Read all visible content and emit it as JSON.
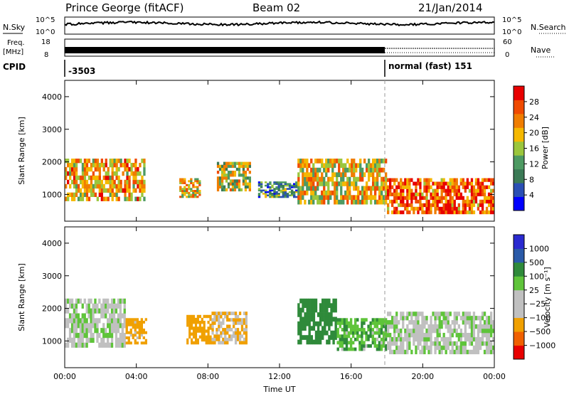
{
  "header": {
    "station": "Prince George (fitACF)",
    "beam": "Beam 02",
    "date": "21/Jan/2014"
  },
  "top_panels": {
    "nsky_label": "N.Sky",
    "nsearch_label": "N.Search",
    "noise_ticks": [
      "10^5",
      "10^0"
    ],
    "freq_label": "Freq.",
    "freq_unit": "[MHz]",
    "freq_ticks": [
      "18",
      "8"
    ],
    "nave_label": "Nave",
    "nave_ticks": [
      "60",
      "0"
    ],
    "cpid_label": "CPID",
    "cpid_segments": [
      {
        "text": "-3503",
        "start_hour": 0
      },
      {
        "text": "normal (fast) 151",
        "start_hour": 18
      }
    ]
  },
  "colors": {
    "power": [
      "#0000ff",
      "#2a4fb4",
      "#3b7a56",
      "#4d9a62",
      "#9bc63c",
      "#f5b800",
      "#f07d00",
      "#f04a00",
      "#e80000"
    ],
    "velocity": [
      "#2a2ad0",
      "#2a5aa8",
      "#2f8a3a",
      "#5fc43a",
      "#c0c0c0",
      "#c0c0c0",
      "#f0a000",
      "#f06000",
      "#e80000"
    ]
  },
  "chart_data": [
    {
      "type": "heatmap",
      "name": "power-panel",
      "xlabel": "",
      "ylabel": "Slant Range [km]",
      "x_ticks": [
        "00:00",
        "04:00",
        "08:00",
        "12:00",
        "16:00",
        "20:00",
        "00:00"
      ],
      "x_range_hours": [
        0,
        24
      ],
      "y_ticks": [
        "1000",
        "2000",
        "3000",
        "4000"
      ],
      "ylim": [
        180,
        4500
      ],
      "colorbar": {
        "label": "Power [dB]",
        "ticks": [
          "4",
          "8",
          "12",
          "16",
          "20",
          "24",
          "28"
        ]
      },
      "regions": [
        {
          "t0": 0.0,
          "t1": 4.5,
          "r0": 800,
          "r1": 2100,
          "value": 20
        },
        {
          "t0": 6.4,
          "t1": 7.6,
          "r0": 900,
          "r1": 1500,
          "value": 18
        },
        {
          "t0": 8.5,
          "t1": 10.4,
          "r0": 1100,
          "r1": 2000,
          "value": 16
        },
        {
          "t0": 10.8,
          "t1": 13.0,
          "r0": 900,
          "r1": 1400,
          "value": 10
        },
        {
          "t0": 13.0,
          "t1": 18.0,
          "r0": 700,
          "r1": 2100,
          "value": 18
        },
        {
          "t0": 18.0,
          "t1": 24.0,
          "r0": 400,
          "r1": 1500,
          "value": 24
        }
      ]
    },
    {
      "type": "heatmap",
      "name": "velocity-panel",
      "xlabel": "Time UT",
      "ylabel": "Slant Range [km]",
      "x_ticks": [
        "00:00",
        "04:00",
        "08:00",
        "12:00",
        "16:00",
        "20:00",
        "00:00"
      ],
      "x_range_hours": [
        0,
        24
      ],
      "y_ticks": [
        "1000",
        "2000",
        "3000",
        "4000"
      ],
      "ylim": [
        180,
        4500
      ],
      "colorbar": {
        "label": "Velocity [m s⁻¹]",
        "ticks": [
          "1000",
          "500",
          "100",
          "25",
          "−25",
          "−100",
          "−500",
          "−1000"
        ]
      },
      "regions": [
        {
          "t0": 0.0,
          "t1": 3.4,
          "r0": 800,
          "r1": 2300,
          "value": 0
        },
        {
          "t0": 3.4,
          "t1": 4.6,
          "r0": 900,
          "r1": 1700,
          "value": -150
        },
        {
          "t0": 6.8,
          "t1": 8.2,
          "r0": 900,
          "r1": 1800,
          "value": -300
        },
        {
          "t0": 8.2,
          "t1": 10.2,
          "r0": 900,
          "r1": 1900,
          "value": -100
        },
        {
          "t0": 13.0,
          "t1": 15.2,
          "r0": 900,
          "r1": 2300,
          "value": 300
        },
        {
          "t0": 15.2,
          "t1": 18.0,
          "r0": 700,
          "r1": 1700,
          "value": 80
        },
        {
          "t0": 18.0,
          "t1": 24.0,
          "r0": 600,
          "r1": 1900,
          "value": 0
        }
      ]
    }
  ]
}
